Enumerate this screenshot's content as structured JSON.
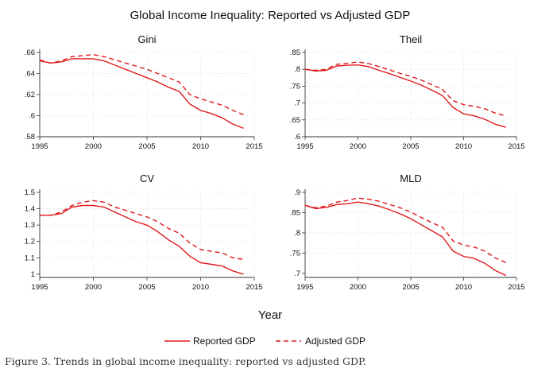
{
  "figure": {
    "caption": "Figure 3. Trends in global income inequality: reported vs adjusted GDP."
  },
  "chart_data": {
    "type": "line",
    "title": "Global Income Inequality: Reported vs Adjusted GDP",
    "xlabel": "Year",
    "legend": {
      "placement": "bottom-center",
      "entries": [
        "Reported GDP",
        "Adjusted GDP"
      ]
    },
    "colors": {
      "line": "#e0191e",
      "grid": "#dcdcdc",
      "axis": "#333333"
    },
    "grid": true,
    "x": [
      1995,
      1996,
      1997,
      1998,
      1999,
      2000,
      2001,
      2002,
      2003,
      2004,
      2005,
      2006,
      2007,
      2008,
      2009,
      2010,
      2011,
      2012,
      2013,
      2014
    ],
    "xlim": [
      1995,
      2015
    ],
    "xticks": [
      "1995",
      "2000",
      "2005",
      "2010",
      "2015"
    ],
    "panels": [
      {
        "title": "Gini",
        "ylim": [
          0.58,
          0.66
        ],
        "yticks": [
          0.58,
          0.6,
          0.62,
          0.64,
          0.66
        ],
        "ytick_labels": [
          ".58",
          ".6",
          ".62",
          ".64",
          ".66"
        ],
        "series": [
          {
            "name": "Reported GDP",
            "style": "solid",
            "values": [
              0.652,
              0.65,
              0.651,
              0.654,
              0.654,
              0.654,
              0.652,
              0.648,
              0.644,
              0.64,
              0.636,
              0.632,
              0.627,
              0.623,
              0.611,
              0.605,
              0.602,
              0.598,
              0.592,
              0.588
            ]
          },
          {
            "name": "Adjusted GDP",
            "style": "dashed",
            "values": [
              0.653,
              0.65,
              0.652,
              0.656,
              0.657,
              0.658,
              0.656,
              0.653,
              0.65,
              0.647,
              0.644,
              0.64,
              0.636,
              0.632,
              0.62,
              0.616,
              0.613,
              0.61,
              0.605,
              0.601
            ]
          }
        ]
      },
      {
        "title": "Theil",
        "ylim": [
          0.6,
          0.85
        ],
        "yticks": [
          0.6,
          0.65,
          0.7,
          0.75,
          0.8,
          0.85
        ],
        "ytick_labels": [
          ".6",
          ".65",
          ".7",
          ".75",
          ".8",
          ".85"
        ],
        "series": [
          {
            "name": "Reported GDP",
            "style": "solid",
            "values": [
              0.8,
              0.795,
              0.797,
              0.81,
              0.812,
              0.813,
              0.808,
              0.797,
              0.787,
              0.776,
              0.765,
              0.753,
              0.738,
              0.722,
              0.687,
              0.668,
              0.662,
              0.652,
              0.637,
              0.628
            ]
          },
          {
            "name": "Adjusted GDP",
            "style": "dashed",
            "values": [
              0.8,
              0.797,
              0.8,
              0.815,
              0.818,
              0.822,
              0.817,
              0.808,
              0.798,
              0.788,
              0.779,
              0.768,
              0.754,
              0.74,
              0.707,
              0.695,
              0.69,
              0.683,
              0.67,
              0.662
            ]
          }
        ]
      },
      {
        "title": "CV",
        "ylim": [
          0.98,
          1.5
        ],
        "yticks": [
          1.0,
          1.1,
          1.2,
          1.3,
          1.4,
          1.5
        ],
        "ytick_labels": [
          "1",
          "1.1",
          "1.2",
          "1.3",
          "1.4",
          "1.5"
        ],
        "series": [
          {
            "name": "Reported GDP",
            "style": "solid",
            "values": [
              1.36,
              1.36,
              1.37,
              1.41,
              1.42,
              1.42,
              1.41,
              1.38,
              1.35,
              1.32,
              1.3,
              1.26,
              1.21,
              1.17,
              1.11,
              1.07,
              1.06,
              1.05,
              1.02,
              1.0
            ]
          },
          {
            "name": "Adjusted GDP",
            "style": "dashed",
            "values": [
              1.36,
              1.36,
              1.38,
              1.42,
              1.44,
              1.45,
              1.44,
              1.41,
              1.39,
              1.37,
              1.35,
              1.32,
              1.28,
              1.25,
              1.19,
              1.15,
              1.14,
              1.13,
              1.1,
              1.09
            ]
          }
        ]
      },
      {
        "title": "MLD",
        "ylim": [
          0.69,
          0.9
        ],
        "yticks": [
          0.7,
          0.75,
          0.8,
          0.85,
          0.9
        ],
        "ytick_labels": [
          ".7",
          ".75",
          ".8",
          ".85",
          ".9"
        ],
        "series": [
          {
            "name": "Reported GDP",
            "style": "solid",
            "values": [
              0.868,
              0.86,
              0.863,
              0.87,
              0.872,
              0.876,
              0.872,
              0.866,
              0.857,
              0.847,
              0.835,
              0.82,
              0.805,
              0.79,
              0.755,
              0.742,
              0.737,
              0.725,
              0.707,
              0.695
            ]
          },
          {
            "name": "Adjusted GDP",
            "style": "dashed",
            "values": [
              0.868,
              0.862,
              0.866,
              0.876,
              0.88,
              0.886,
              0.883,
              0.878,
              0.87,
              0.862,
              0.851,
              0.838,
              0.825,
              0.814,
              0.78,
              0.77,
              0.765,
              0.755,
              0.738,
              0.727
            ]
          }
        ]
      }
    ]
  }
}
